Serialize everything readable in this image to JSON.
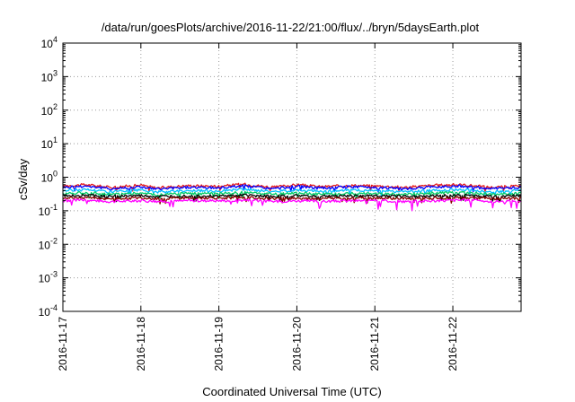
{
  "chart_data": {
    "type": "line",
    "title": "/data/run/goesPlots/archive/2016-11-22/21:00/flux/../bryn/5daysEarth.plot",
    "xlabel": "Coordinated Universal Time (UTC)",
    "ylabel": "cSv/day",
    "yscale": "log",
    "ylim": [
      0.0001,
      10000
    ],
    "xlim": [
      "2016-11-17",
      "2016-11-22T21:00"
    ],
    "grid": true,
    "x_ticks": [
      {
        "label": "2016-11-17",
        "value": 0
      },
      {
        "label": "2016-11-18",
        "value": 1
      },
      {
        "label": "2016-11-19",
        "value": 2
      },
      {
        "label": "2016-11-20",
        "value": 3
      },
      {
        "label": "2016-11-21",
        "value": 4
      },
      {
        "label": "2016-11-22",
        "value": 5
      }
    ],
    "y_ticks": [
      {
        "base": "10",
        "exp": "4",
        "value": 10000
      },
      {
        "base": "10",
        "exp": "3",
        "value": 1000
      },
      {
        "base": "10",
        "exp": "2",
        "value": 100
      },
      {
        "base": "10",
        "exp": "1",
        "value": 10
      },
      {
        "base": "10",
        "exp": "0",
        "value": 1
      },
      {
        "base": "10",
        "exp": "-1",
        "value": 0.1
      },
      {
        "base": "10",
        "exp": "-2",
        "value": 0.01
      },
      {
        "base": "10",
        "exp": "-3",
        "value": 0.001
      },
      {
        "base": "10",
        "exp": "-4",
        "value": 0.0001
      }
    ],
    "series": [
      {
        "color": "#e41a1c",
        "base": 0.55,
        "points": [
          [
            0,
            0.55
          ],
          [
            0.3,
            0.6
          ],
          [
            0.6,
            0.5
          ],
          [
            1.0,
            0.58
          ],
          [
            1.2,
            0.48
          ],
          [
            1.6,
            0.56
          ],
          [
            2.0,
            0.54
          ],
          [
            2.3,
            0.62
          ],
          [
            2.7,
            0.5
          ],
          [
            3.0,
            0.6
          ],
          [
            3.3,
            0.52
          ],
          [
            3.7,
            0.57
          ],
          [
            4.0,
            0.55
          ],
          [
            4.4,
            0.5
          ],
          [
            4.8,
            0.58
          ],
          [
            5.1,
            0.6
          ],
          [
            5.5,
            0.5
          ],
          [
            5.875,
            0.55
          ]
        ]
      },
      {
        "color": "#0000ff",
        "base": 0.5,
        "points": [
          [
            0,
            0.5
          ],
          [
            0.3,
            0.55
          ],
          [
            0.6,
            0.45
          ],
          [
            1.0,
            0.52
          ],
          [
            1.2,
            0.44
          ],
          [
            1.6,
            0.5
          ],
          [
            2.0,
            0.48
          ],
          [
            2.3,
            0.56
          ],
          [
            2.7,
            0.45
          ],
          [
            3.0,
            0.54
          ],
          [
            3.3,
            0.47
          ],
          [
            3.7,
            0.52
          ],
          [
            4.0,
            0.5
          ],
          [
            4.4,
            0.45
          ],
          [
            4.8,
            0.52
          ],
          [
            5.1,
            0.55
          ],
          [
            5.5,
            0.45
          ],
          [
            5.875,
            0.5
          ]
        ]
      },
      {
        "color": "#00bfff",
        "base": 0.4,
        "points": [
          [
            0,
            0.4
          ],
          [
            0.3,
            0.43
          ],
          [
            0.6,
            0.37
          ],
          [
            1.0,
            0.41
          ],
          [
            1.2,
            0.36
          ],
          [
            1.6,
            0.4
          ],
          [
            2.0,
            0.39
          ],
          [
            2.3,
            0.44
          ],
          [
            2.7,
            0.37
          ],
          [
            3.0,
            0.42
          ],
          [
            3.3,
            0.38
          ],
          [
            3.7,
            0.41
          ],
          [
            4.0,
            0.4
          ],
          [
            4.4,
            0.37
          ],
          [
            4.8,
            0.41
          ],
          [
            5.1,
            0.43
          ],
          [
            5.5,
            0.37
          ],
          [
            5.875,
            0.4
          ]
        ]
      },
      {
        "color": "#00cc66",
        "base": 0.33,
        "points": [
          [
            0,
            0.33
          ],
          [
            0.3,
            0.35
          ],
          [
            0.6,
            0.31
          ],
          [
            1.0,
            0.34
          ],
          [
            1.2,
            0.3
          ],
          [
            1.6,
            0.33
          ],
          [
            2.0,
            0.32
          ],
          [
            2.3,
            0.35
          ],
          [
            2.7,
            0.31
          ],
          [
            3.0,
            0.34
          ],
          [
            3.3,
            0.31
          ],
          [
            3.7,
            0.33
          ],
          [
            4.0,
            0.33
          ],
          [
            4.4,
            0.31
          ],
          [
            4.8,
            0.34
          ],
          [
            5.1,
            0.35
          ],
          [
            5.5,
            0.31
          ],
          [
            5.875,
            0.33
          ]
        ]
      },
      {
        "color": "#000000",
        "base": 0.28,
        "points": [
          [
            0,
            0.28
          ],
          [
            0.3,
            0.29
          ],
          [
            0.6,
            0.27
          ],
          [
            1.0,
            0.28
          ],
          [
            1.2,
            0.26
          ],
          [
            1.6,
            0.28
          ],
          [
            2.0,
            0.27
          ],
          [
            2.3,
            0.29
          ],
          [
            2.7,
            0.27
          ],
          [
            3.0,
            0.28
          ],
          [
            3.3,
            0.27
          ],
          [
            3.7,
            0.28
          ],
          [
            4.0,
            0.28
          ],
          [
            4.4,
            0.27
          ],
          [
            4.8,
            0.28
          ],
          [
            5.1,
            0.29
          ],
          [
            5.5,
            0.27
          ],
          [
            5.875,
            0.28
          ]
        ]
      },
      {
        "color": "#8b0000",
        "base": 0.24,
        "points": [
          [
            0,
            0.24
          ],
          [
            0.3,
            0.25
          ],
          [
            0.6,
            0.23
          ],
          [
            1.0,
            0.24
          ],
          [
            1.2,
            0.23
          ],
          [
            1.6,
            0.24
          ],
          [
            2.0,
            0.24
          ],
          [
            2.3,
            0.25
          ],
          [
            2.7,
            0.23
          ],
          [
            3.0,
            0.24
          ],
          [
            3.3,
            0.23
          ],
          [
            3.7,
            0.24
          ],
          [
            4.0,
            0.24
          ],
          [
            4.4,
            0.23
          ],
          [
            4.8,
            0.24
          ],
          [
            5.1,
            0.25
          ],
          [
            5.5,
            0.23
          ],
          [
            5.875,
            0.24
          ]
        ]
      },
      {
        "color": "#ff00ff",
        "base": 0.2,
        "points": [
          [
            0,
            0.2
          ],
          [
            0.3,
            0.21
          ],
          [
            0.6,
            0.19
          ],
          [
            1.0,
            0.2
          ],
          [
            1.2,
            0.19
          ],
          [
            1.6,
            0.2
          ],
          [
            2.0,
            0.2
          ],
          [
            2.3,
            0.21
          ],
          [
            2.7,
            0.19
          ],
          [
            3.0,
            0.2
          ],
          [
            3.3,
            0.19
          ],
          [
            3.7,
            0.2
          ],
          [
            4.0,
            0.2
          ],
          [
            4.4,
            0.19
          ],
          [
            4.8,
            0.2
          ],
          [
            5.1,
            0.21
          ],
          [
            5.5,
            0.19
          ],
          [
            5.875,
            0.2
          ]
        ]
      }
    ]
  }
}
